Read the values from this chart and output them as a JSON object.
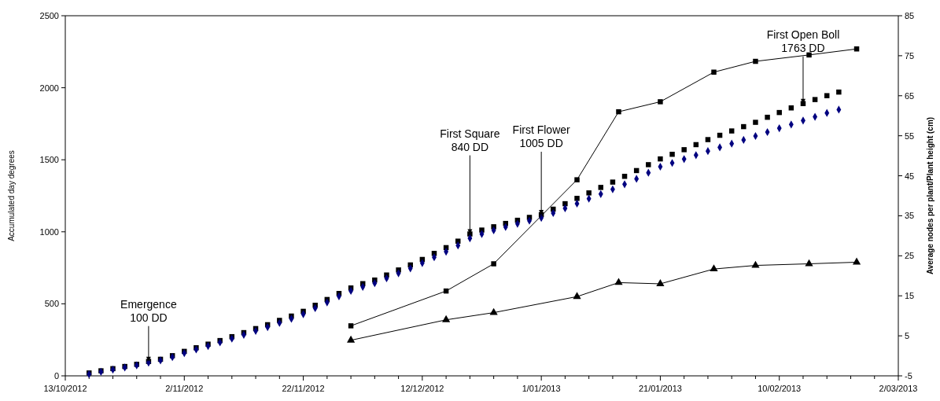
{
  "chart_data": {
    "type": "scatter",
    "ylabel": "Accumulated day degrees",
    "y2label": "Average nodes per plant/Plant height (cm)",
    "x": [
      "2012-10-17",
      "2012-10-19",
      "2012-10-21",
      "2012-10-23",
      "2012-10-25",
      "2012-10-27",
      "2012-10-29",
      "2012-10-31",
      "2012-11-02",
      "2012-11-04",
      "2012-11-06",
      "2012-11-08",
      "2012-11-10",
      "2012-11-12",
      "2012-11-14",
      "2012-11-16",
      "2012-11-18",
      "2012-11-20",
      "2012-11-22",
      "2012-11-24",
      "2012-11-26",
      "2012-11-28",
      "2012-11-30",
      "2012-12-02",
      "2012-12-04",
      "2012-12-06",
      "2012-12-08",
      "2012-12-10",
      "2012-12-12",
      "2012-12-14",
      "2012-12-16",
      "2012-12-18",
      "2012-12-20",
      "2012-12-22",
      "2012-12-24",
      "2012-12-26",
      "2012-12-28",
      "2012-12-30",
      "2013-01-01",
      "2013-01-03",
      "2013-01-05",
      "2013-01-07",
      "2013-01-09",
      "2013-01-11",
      "2013-01-13",
      "2013-01-15",
      "2013-01-17",
      "2013-01-19",
      "2013-01-21",
      "2013-01-23",
      "2013-01-25",
      "2013-01-27",
      "2013-01-29",
      "2013-01-31",
      "2013-02-02",
      "2013-02-04",
      "2013-02-06",
      "2013-02-08",
      "2013-02-10",
      "2013-02-12",
      "2013-02-14",
      "2013-02-16",
      "2013-02-18",
      "2013-02-20"
    ],
    "series": [
      {
        "marker": "square",
        "color": "#000000",
        "values": [
          20,
          35,
          50,
          65,
          80,
          100,
          115,
          140,
          170,
          195,
          220,
          245,
          272,
          300,
          328,
          355,
          385,
          415,
          448,
          490,
          530,
          572,
          610,
          640,
          665,
          700,
          735,
          770,
          808,
          850,
          890,
          935,
          985,
          1012,
          1035,
          1058,
          1080,
          1100,
          1119,
          1157,
          1195,
          1232,
          1270,
          1308,
          1345,
          1385,
          1425,
          1466,
          1506,
          1538,
          1570,
          1605,
          1640,
          1670,
          1700,
          1730,
          1760,
          1795,
          1828,
          1860,
          1890,
          1918,
          1945,
          1970
        ]
      },
      {
        "marker": "diamond",
        "color": "#000080",
        "values": [
          12,
          28,
          43,
          58,
          73,
          92,
          107,
          130,
          158,
          183,
          207,
          232,
          258,
          285,
          312,
          338,
          367,
          396,
          428,
          470,
          510,
          552,
          590,
          618,
          643,
          677,
          712,
          746,
          783,
          823,
          862,
          905,
          955,
          985,
          1010,
          1033,
          1056,
          1077,
          1097,
          1130,
          1163,
          1196,
          1230,
          1262,
          1295,
          1330,
          1368,
          1410,
          1452,
          1478,
          1505,
          1532,
          1560,
          1586,
          1612,
          1638,
          1665,
          1692,
          1719,
          1745,
          1772,
          1798,
          1825,
          1848
        ]
      },
      {
        "type": "line",
        "marker": "square",
        "axis": "y2",
        "color": "#000000",
        "x": [
          "2012-11-30",
          "2012-12-16",
          "2012-12-24",
          "2013-01-07",
          "2013-01-14",
          "2013-01-21",
          "2013-01-30",
          "2013-02-06",
          "2013-02-15",
          "2013-02-23"
        ],
        "values": [
          7.5,
          16.2,
          23.0,
          44.0,
          61.0,
          63.5,
          70.9,
          73.6,
          75.2,
          76.7
        ]
      },
      {
        "type": "line",
        "marker": "triangle",
        "axis": "y2",
        "color": "#000000",
        "x": [
          "2012-11-30",
          "2012-12-16",
          "2012-12-24",
          "2013-01-07",
          "2013-01-14",
          "2013-01-21",
          "2013-01-30",
          "2013-02-06",
          "2013-02-15",
          "2013-02-23"
        ],
        "values": [
          3.9,
          9.0,
          10.8,
          14.8,
          18.3,
          18.0,
          21.7,
          22.6,
          23.0,
          23.4
        ]
      }
    ],
    "xlim": [
      "2012-10-13",
      "2013-03-02"
    ],
    "xticks": [
      {
        "value": "2012-10-13",
        "label": "13/10/2012"
      },
      {
        "value": "2012-10-17",
        "label": null
      },
      {
        "value": "2012-10-21",
        "label": null
      },
      {
        "value": "2012-10-25",
        "label": null
      },
      {
        "value": "2012-10-29",
        "label": null
      },
      {
        "value": "2012-11-02",
        "label": "2/11/2012"
      },
      {
        "value": "2012-11-06",
        "label": null
      },
      {
        "value": "2012-11-10",
        "label": null
      },
      {
        "value": "2012-11-14",
        "label": null
      },
      {
        "value": "2012-11-18",
        "label": null
      },
      {
        "value": "2012-11-22",
        "label": "22/11/2012"
      },
      {
        "value": "2012-11-26",
        "label": null
      },
      {
        "value": "2012-11-30",
        "label": null
      },
      {
        "value": "2012-12-04",
        "label": null
      },
      {
        "value": "2012-12-08",
        "label": null
      },
      {
        "value": "2012-12-12",
        "label": "12/12/2012"
      },
      {
        "value": "2012-12-16",
        "label": null
      },
      {
        "value": "2012-12-20",
        "label": null
      },
      {
        "value": "2012-12-24",
        "label": null
      },
      {
        "value": "2012-12-28",
        "label": null
      },
      {
        "value": "2013-01-01",
        "label": "1/01/2013"
      },
      {
        "value": "2013-01-05",
        "label": null
      },
      {
        "value": "2013-01-09",
        "label": null
      },
      {
        "value": "2013-01-13",
        "label": null
      },
      {
        "value": "2013-01-17",
        "label": null
      },
      {
        "value": "2013-01-21",
        "label": "21/01/2013"
      },
      {
        "value": "2013-01-25",
        "label": null
      },
      {
        "value": "2013-01-29",
        "label": null
      },
      {
        "value": "2013-02-02",
        "label": null
      },
      {
        "value": "2013-02-06",
        "label": null
      },
      {
        "value": "2013-02-10",
        "label": "10/02/2013"
      },
      {
        "value": "2013-02-14",
        "label": null
      },
      {
        "value": "2013-02-18",
        "label": null
      },
      {
        "value": "2013-02-22",
        "label": null
      },
      {
        "value": "2013-02-26",
        "label": null
      },
      {
        "value": "2013-03-02",
        "label": "2/03/2013"
      }
    ],
    "ylim": [
      0,
      2500
    ],
    "yticks": [
      0,
      500,
      1000,
      1500,
      2000,
      2500
    ],
    "y2lim": [
      -5,
      85
    ],
    "y2ticks": [
      -5,
      5,
      15,
      25,
      35,
      45,
      55,
      65,
      75,
      85
    ],
    "annotations": [
      {
        "text": "Emergence\n100 DD",
        "x": "2012-10-27",
        "y": 100
      },
      {
        "text": "First Square\n840 DD",
        "x": "2012-12-20",
        "y": 985
      },
      {
        "text": "First Flower\n1005 DD",
        "x": "2013-01-01",
        "y": 1119
      },
      {
        "text": "First Open Boll\n1763 DD",
        "x": "2013-02-14",
        "y": 1890
      }
    ]
  }
}
